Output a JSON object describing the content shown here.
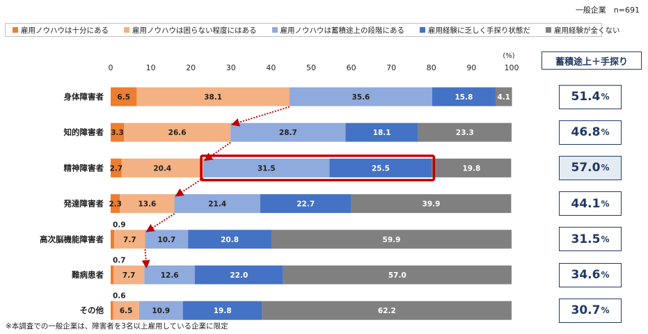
{
  "sample_note": "一般企業　n=691",
  "footnote": "※本調査での一般企業は、障害者を3名以上雇用している企業に限定",
  "summary": {
    "header": "蓄積途上＋手探り",
    "values": [
      "51.4",
      "46.8",
      "57.0",
      "44.1",
      "31.5",
      "34.6",
      "30.7"
    ],
    "unit": "%",
    "highlight_index": 2
  },
  "colors": {
    "series": [
      "#ed7d31",
      "#f4b183",
      "#8faadc",
      "#4472c4",
      "#808080"
    ],
    "highlight_frame": "#c00000",
    "arrow": "#c00000",
    "summary_border": "#1f3864"
  },
  "chart_data": {
    "type": "bar",
    "orientation": "horizontal-stacked",
    "xlim": [
      0,
      100
    ],
    "xticks": [
      0,
      10,
      20,
      30,
      40,
      50,
      60,
      70,
      80,
      90,
      100
    ],
    "xunit_label": "(%)",
    "categories": [
      "身体障害者",
      "知的障害者",
      "精神障害者",
      "発達障害者",
      "高次脳機能障害者",
      "難病患者",
      "その他"
    ],
    "series": [
      {
        "name": "雇用ノウハウは十分にある",
        "values": [
          6.5,
          3.3,
          2.7,
          2.3,
          0.9,
          0.7,
          0.6
        ]
      },
      {
        "name": "雇用ノウハウは困らない程度にはある",
        "values": [
          38.1,
          26.6,
          20.4,
          13.6,
          7.7,
          7.7,
          6.5
        ]
      },
      {
        "name": "雇用ノウハウは蓄積途上の段階にある",
        "values": [
          35.6,
          28.7,
          31.5,
          21.4,
          10.7,
          12.6,
          10.9
        ]
      },
      {
        "name": "雇用経験に乏しく手探り状態だ",
        "values": [
          15.8,
          18.1,
          25.5,
          22.7,
          20.8,
          22.0,
          19.8
        ]
      },
      {
        "name": "雇用経験が全くない",
        "values": [
          4.1,
          23.3,
          19.8,
          39.9,
          59.9,
          57.0,
          62.2
        ]
      }
    ],
    "grid": false,
    "legend_position": "top"
  }
}
